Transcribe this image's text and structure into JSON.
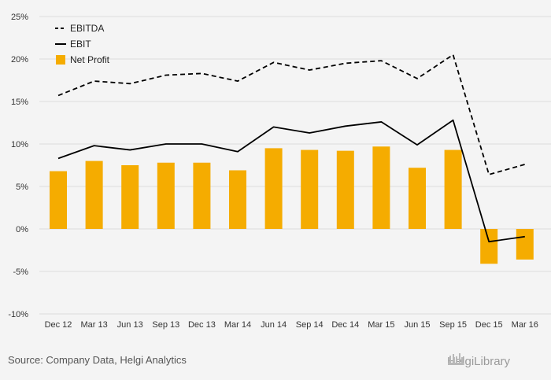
{
  "chart_data": {
    "type": "bar",
    "categories": [
      "Dec 12",
      "Mar 13",
      "Jun 13",
      "Sep 13",
      "Dec 13",
      "Mar 14",
      "Jun 14",
      "Sep 14",
      "Dec 14",
      "Mar 15",
      "Jun 15",
      "Sep 15",
      "Dec 15",
      "Mar 16"
    ],
    "series": [
      {
        "name": "EBITDA",
        "kind": "line",
        "style": "dashed",
        "color": "#000000",
        "values": [
          15.7,
          17.4,
          17.1,
          18.1,
          18.3,
          17.4,
          19.6,
          18.7,
          19.5,
          19.8,
          17.7,
          20.5,
          6.4,
          7.6
        ]
      },
      {
        "name": "EBIT",
        "kind": "line",
        "style": "solid",
        "color": "#000000",
        "values": [
          8.3,
          9.8,
          9.3,
          10.0,
          10.0,
          9.1,
          12.0,
          11.3,
          12.1,
          12.6,
          9.9,
          12.8,
          -1.5,
          -0.9
        ]
      },
      {
        "name": "Net Profit",
        "kind": "bar",
        "color": "#f5ac00",
        "values": [
          6.8,
          8.0,
          7.5,
          7.8,
          7.8,
          6.9,
          9.5,
          9.3,
          9.2,
          9.7,
          7.2,
          9.3,
          -4.1,
          -3.6
        ]
      }
    ],
    "yticks": [
      "25%",
      "20%",
      "15%",
      "10%",
      "5%",
      "0%",
      "-5%",
      "-10%"
    ],
    "ytick_values": [
      25,
      20,
      15,
      10,
      5,
      0,
      -5,
      -10
    ],
    "ylim": [
      -10,
      25
    ],
    "grid": true,
    "legend_position": "top-left",
    "title": "",
    "xlabel": "",
    "ylabel": ""
  },
  "footer": {
    "source": "Source: Company Data, Helgi Analytics",
    "brand": "HelgiLibrary"
  },
  "colors": {
    "background": "#f4f4f4",
    "grid": "#dcdcdc",
    "bar": "#f5ac00",
    "line": "#000000"
  }
}
